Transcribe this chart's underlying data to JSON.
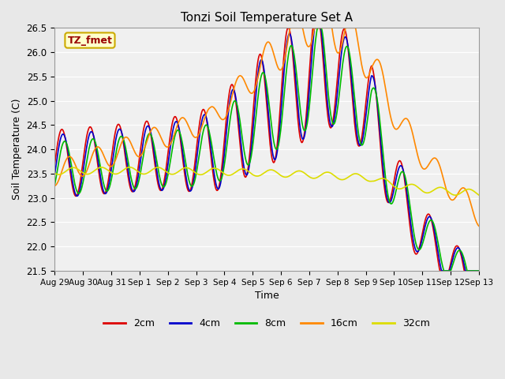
{
  "title": "Tonzi Soil Temperature Set A",
  "xlabel": "Time",
  "ylabel": "Soil Temperature (C)",
  "ylim": [
    21.5,
    26.5
  ],
  "annotation_text": "TZ_fmet",
  "annotation_bg": "#FFFFCC",
  "annotation_border": "#CCAA00",
  "annotation_text_color": "#990000",
  "bg_color": "#E8E8E8",
  "plot_bg_color": "#F0F0F0",
  "series": {
    "2cm": {
      "color": "#DD0000",
      "lw": 1.2
    },
    "4cm": {
      "color": "#0000CC",
      "lw": 1.2
    },
    "8cm": {
      "color": "#00BB00",
      "lw": 1.2
    },
    "16cm": {
      "color": "#FF8800",
      "lw": 1.2
    },
    "32cm": {
      "color": "#DDDD00",
      "lw": 1.2
    }
  },
  "xtick_labels": [
    "Aug 29",
    "Aug 30",
    "Aug 31",
    "Sep 1",
    "Sep 2",
    "Sep 3",
    "Sep 4",
    "Sep 5",
    "Sep 6",
    "Sep 7",
    "Sep 8",
    "Sep 9",
    "Sep 10",
    "Sep 11",
    "Sep 12",
    "Sep 13"
  ],
  "ytick_labels": [
    "21.5",
    "22.0",
    "22.5",
    "23.0",
    "23.5",
    "24.0",
    "24.5",
    "25.0",
    "25.5",
    "26.0",
    "26.5"
  ]
}
